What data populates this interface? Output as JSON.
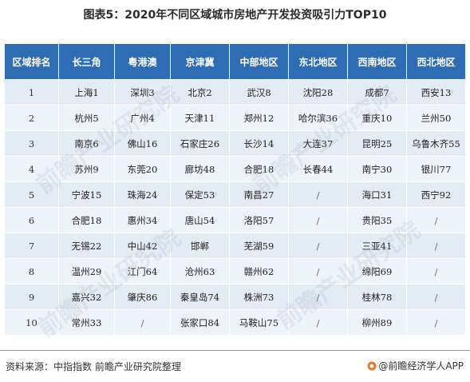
{
  "title": "图表5：2020年不同区域城市房地产开发投资吸引力TOP10",
  "table": {
    "headers": [
      "区域排名",
      "长三角",
      "粤港澳",
      "京津冀",
      "中部地区",
      "东北地区",
      "西南地区",
      "西北地区"
    ],
    "rows": [
      [
        "1",
        "上海1",
        "深圳3",
        "北京2",
        "武汉8",
        "沈阳28",
        "成都7",
        "西安13"
      ],
      [
        "2",
        "杭州5",
        "广州4",
        "天津11",
        "郑州12",
        "哈尔滨36",
        "重庆10",
        "兰州50"
      ],
      [
        "3",
        "南京6",
        "佛山16",
        "石家庄26",
        "长沙14",
        "大连37",
        "昆明25",
        "乌鲁木齐55"
      ],
      [
        "4",
        "苏州9",
        "东莞20",
        "廊坊48",
        "合肥18",
        "长春44",
        "南宁30",
        "银川77"
      ],
      [
        "5",
        "宁波15",
        "珠海24",
        "保定53",
        "南昌27",
        "/",
        "海口31",
        "西宁92"
      ],
      [
        "6",
        "合肥18",
        "惠州34",
        "唐山54",
        "洛阳57",
        "/",
        "贵阳35",
        "/"
      ],
      [
        "7",
        "无锡22",
        "中山42",
        "邯郸",
        "芜湖59",
        "/",
        "三亚41",
        "/"
      ],
      [
        "8",
        "温州29",
        "江门64",
        "沧州63",
        "赣州62",
        "/",
        "绵阳69",
        "/"
      ],
      [
        "9",
        "嘉兴32",
        "肇庆86",
        "秦皇岛74",
        "株洲73",
        "/",
        "桂林78",
        "/"
      ],
      [
        "10",
        "常州33",
        "/",
        "张家口84",
        "马鞍山75",
        "/",
        "柳州89",
        "/"
      ]
    ]
  },
  "footer": {
    "source": "资料来源：中指指数 前瞻产业研究院整理",
    "brand": "@前瞻经济学人APP"
  },
  "watermark_text": "前瞻产业研究院",
  "colors": {
    "header_bg": "#2e6db3",
    "row_bg": "#e3ebf5",
    "row_alt_bg": "#eef3f9",
    "brand_icon": "#e8792b"
  }
}
